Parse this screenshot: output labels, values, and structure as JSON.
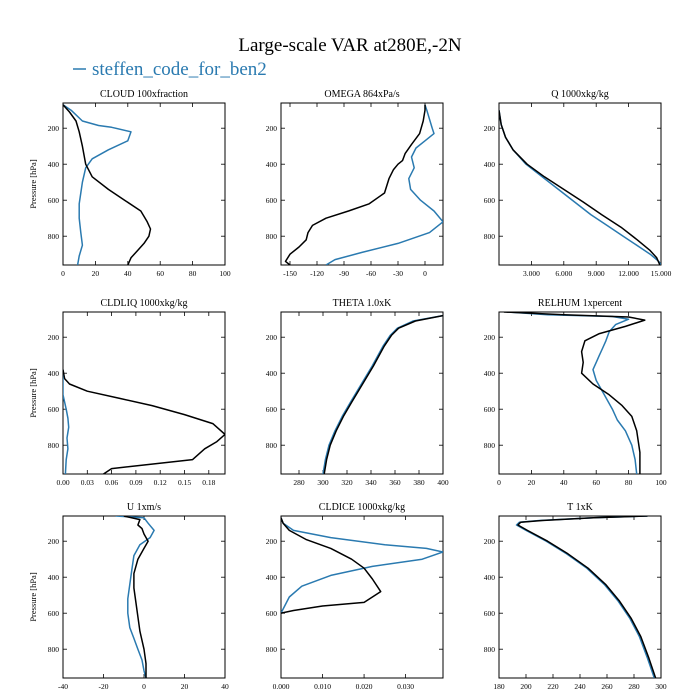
{
  "figure": {
    "title": "Large-scale VAR at280E,-2N",
    "legend_label": "steffen_code_for_ben2",
    "legend_color": "#2a7ab0",
    "reference_color": "#000000"
  },
  "chart_data": [
    {
      "type": "line",
      "title": "CLOUD  100xfraction",
      "ylabel": "Pressure [hPa]",
      "xlim": [
        0,
        100
      ],
      "ylim": [
        960,
        60
      ],
      "y_inverted": true,
      "xticks": [
        0,
        20,
        40,
        60,
        80,
        100
      ],
      "xtick_labels": [
        "0",
        "20",
        "40",
        "60",
        "80",
        "100"
      ],
      "yticks": [
        200,
        400,
        600,
        800
      ],
      "ytick_labels": [
        "200",
        "400",
        "600",
        "800"
      ],
      "series": [
        {
          "name": "steffen_code_for_ben2",
          "color": "#2a7ab0",
          "x": [
            0,
            5,
            12,
            22,
            30,
            42,
            40,
            28,
            18,
            14,
            12,
            11,
            10,
            10,
            11,
            12,
            10,
            9
          ],
          "y": [
            70,
            100,
            160,
            185,
            195,
            220,
            270,
            320,
            370,
            420,
            500,
            560,
            620,
            700,
            780,
            850,
            910,
            960
          ]
        },
        {
          "name": "black",
          "color": "#000000",
          "x": [
            0,
            4,
            8,
            10,
            12,
            14,
            18,
            28,
            38,
            48,
            52,
            54,
            53,
            50,
            46,
            42,
            40
          ],
          "y": [
            70,
            110,
            160,
            220,
            300,
            400,
            470,
            540,
            600,
            660,
            720,
            760,
            800,
            840,
            880,
            920,
            960
          ]
        }
      ]
    },
    {
      "type": "line",
      "title": "OMEGA  864xPa/s",
      "ylabel": "",
      "xlim": [
        -160,
        20
      ],
      "ylim": [
        960,
        60
      ],
      "y_inverted": true,
      "xticks": [
        -150,
        -120,
        -90,
        -60,
        -30,
        0
      ],
      "xtick_labels": [
        "-150",
        "-120",
        "-90",
        "-60",
        "-30",
        "0"
      ],
      "yticks": [
        200,
        400,
        600,
        800
      ],
      "ytick_labels": [
        "200",
        "400",
        "600",
        "800"
      ],
      "series": [
        {
          "name": "steffen_code_for_ben2",
          "color": "#2a7ab0",
          "x": [
            0,
            2,
            5,
            8,
            10,
            0,
            -10,
            -15,
            -12,
            -18,
            -16,
            -5,
            10,
            20,
            5,
            -30,
            -70,
            -100,
            -110
          ],
          "y": [
            70,
            100,
            150,
            200,
            230,
            270,
            310,
            360,
            420,
            480,
            540,
            600,
            660,
            720,
            780,
            840,
            890,
            930,
            960
          ]
        },
        {
          "name": "black",
          "color": "#000000",
          "x": [
            0,
            0,
            -2,
            -6,
            -15,
            -22,
            -25,
            -30,
            -35,
            -40,
            -45,
            -62,
            -85,
            -110,
            -125,
            -130,
            -132,
            -140,
            -150,
            -155,
            -150
          ],
          "y": [
            70,
            100,
            160,
            230,
            290,
            340,
            380,
            400,
            430,
            480,
            560,
            620,
            660,
            700,
            740,
            780,
            820,
            860,
            900,
            940,
            960
          ]
        }
      ]
    },
    {
      "type": "line",
      "title": "Q  1000xkg/kg",
      "ylabel": "",
      "xlim": [
        0,
        15
      ],
      "ylim": [
        960,
        60
      ],
      "y_inverted": true,
      "xticks": [
        3,
        6,
        9,
        12,
        15
      ],
      "xtick_labels": [
        "3.000",
        "6.000",
        "9.000",
        "12.000",
        "15.000"
      ],
      "yticks": [
        200,
        400,
        600,
        800
      ],
      "ytick_labels": [
        "200",
        "400",
        "600",
        "800"
      ],
      "series": [
        {
          "name": "steffen_code_for_ben2",
          "color": "#2a7ab0",
          "x": [
            0,
            0.2,
            0.6,
            1.3,
            2.5,
            4.0,
            5.5,
            7.0,
            8.5,
            10.0,
            11.5,
            13.0,
            14.0,
            14.8,
            15.0
          ],
          "y": [
            100,
            180,
            250,
            320,
            400,
            470,
            540,
            610,
            680,
            740,
            800,
            860,
            900,
            940,
            960
          ]
        },
        {
          "name": "black",
          "color": "#000000",
          "x": [
            0,
            0.2,
            0.6,
            1.3,
            2.6,
            4.2,
            6.0,
            7.8,
            9.5,
            11.3,
            12.8,
            14.0,
            14.6,
            14.9
          ],
          "y": [
            100,
            180,
            250,
            320,
            400,
            470,
            540,
            610,
            680,
            750,
            820,
            880,
            920,
            960
          ]
        }
      ]
    },
    {
      "type": "line",
      "title": "CLDLIQ  1000xkg/kg",
      "ylabel": "Pressure [hPa]",
      "xlim": [
        0,
        0.2
      ],
      "ylim": [
        960,
        60
      ],
      "y_inverted": true,
      "xticks": [
        0,
        0.03,
        0.06,
        0.09,
        0.12,
        0.15,
        0.18
      ],
      "xtick_labels": [
        "0.00",
        "0.03",
        "0.06",
        "0.09",
        "0.12",
        "0.15",
        "0.18"
      ],
      "yticks": [
        200,
        400,
        600,
        800
      ],
      "ytick_labels": [
        "200",
        "400",
        "600",
        "800"
      ],
      "series": [
        {
          "name": "steffen_code_for_ben2",
          "color": "#2a7ab0",
          "x": [
            0,
            0,
            0.002,
            0.004,
            0.006,
            0.007,
            0.005,
            0.006,
            0.004,
            0.003
          ],
          "y": [
            380,
            520,
            560,
            600,
            650,
            700,
            760,
            820,
            880,
            960
          ]
        },
        {
          "name": "black",
          "color": "#000000",
          "x": [
            0,
            0.002,
            0.008,
            0.03,
            0.07,
            0.11,
            0.15,
            0.185,
            0.2,
            0.19,
            0.175,
            0.16,
            0.1,
            0.06,
            0.05
          ],
          "y": [
            380,
            430,
            460,
            500,
            540,
            580,
            630,
            680,
            740,
            780,
            820,
            880,
            910,
            930,
            960
          ]
        }
      ]
    },
    {
      "type": "line",
      "title": "THETA  1.0xK",
      "ylabel": "",
      "xlim": [
        265,
        400
      ],
      "ylim": [
        960,
        60
      ],
      "y_inverted": true,
      "xticks": [
        280,
        300,
        320,
        340,
        360,
        380,
        400
      ],
      "xtick_labels": [
        "280",
        "300",
        "320",
        "340",
        "360",
        "380",
        "400"
      ],
      "yticks": [
        200,
        400,
        600,
        800
      ],
      "ytick_labels": [
        "200",
        "400",
        "600",
        "800"
      ],
      "series": [
        {
          "name": "steffen_code_for_ben2",
          "color": "#2a7ab0",
          "x": [
            300,
            302,
            305,
            310,
            316,
            323,
            332,
            341,
            350,
            356,
            362,
            375,
            400
          ],
          "y": [
            960,
            880,
            800,
            720,
            640,
            560,
            460,
            360,
            250,
            190,
            150,
            110,
            80
          ]
        },
        {
          "name": "black",
          "color": "#000000",
          "x": [
            301,
            303,
            306,
            311,
            317,
            324,
            333,
            342,
            351,
            357,
            363,
            377,
            400
          ],
          "y": [
            960,
            880,
            800,
            720,
            640,
            560,
            460,
            360,
            250,
            190,
            150,
            110,
            80
          ]
        }
      ]
    },
    {
      "type": "line",
      "title": "RELHUM  1xpercent",
      "ylabel": "",
      "xlim": [
        0,
        100
      ],
      "ylim": [
        960,
        60
      ],
      "y_inverted": true,
      "xticks": [
        0,
        20,
        40,
        60,
        80,
        100
      ],
      "xtick_labels": [
        "0",
        "20",
        "40",
        "60",
        "80",
        "100"
      ],
      "yticks": [
        200,
        400,
        600,
        800
      ],
      "ytick_labels": [
        "200",
        "400",
        "600",
        "800"
      ],
      "series": [
        {
          "name": "steffen_code_for_ben2",
          "color": "#2a7ab0",
          "x": [
            5,
            30,
            70,
            80,
            72,
            68,
            66,
            64,
            62,
            60,
            58,
            60,
            65,
            70,
            73,
            78,
            82,
            84,
            85
          ],
          "y": [
            60,
            75,
            85,
            100,
            130,
            170,
            220,
            260,
            300,
            340,
            380,
            440,
            520,
            600,
            660,
            720,
            800,
            880,
            960
          ]
        },
        {
          "name": "black",
          "color": "#000000",
          "x": [
            3,
            40,
            80,
            90,
            78,
            62,
            53,
            51,
            52,
            51,
            58,
            68,
            76,
            82,
            85,
            87,
            87
          ],
          "y": [
            60,
            75,
            88,
            105,
            140,
            180,
            220,
            280,
            340,
            400,
            460,
            520,
            580,
            640,
            720,
            840,
            960
          ]
        }
      ]
    },
    {
      "type": "line",
      "title": "U  1xm/s",
      "ylabel": "Pressure [hPa]",
      "xlim": [
        -40,
        40
      ],
      "ylim": [
        960,
        60
      ],
      "y_inverted": true,
      "xticks": [
        -40,
        -20,
        0,
        20,
        40
      ],
      "xtick_labels": [
        "-40",
        "-20",
        "0",
        "20",
        "40"
      ],
      "yticks": [
        200,
        400,
        600,
        800
      ],
      "ytick_labels": [
        "200",
        "400",
        "600",
        "800"
      ],
      "series": [
        {
          "name": "steffen_code_for_ben2",
          "color": "#2a7ab0",
          "x": [
            -14,
            0,
            2,
            5,
            3,
            -2,
            -5,
            -6,
            -7,
            -8,
            -8,
            -7,
            -5,
            -3,
            -1,
            0,
            1
          ],
          "y": [
            60,
            70,
            100,
            140,
            180,
            220,
            280,
            360,
            440,
            520,
            600,
            680,
            740,
            800,
            860,
            920,
            960
          ]
        },
        {
          "name": "black",
          "color": "#000000",
          "x": [
            -10,
            -2,
            -3,
            -1,
            0,
            2,
            0,
            -3,
            -5,
            -5,
            -4,
            -3,
            -2,
            0,
            1,
            1
          ],
          "y": [
            60,
            80,
            110,
            130,
            160,
            200,
            240,
            300,
            380,
            460,
            540,
            620,
            700,
            800,
            880,
            960
          ]
        }
      ]
    },
    {
      "type": "line",
      "title": "CLDICE  1000xkg/kg",
      "ylabel": "",
      "xlim": [
        0,
        0.039
      ],
      "ylim": [
        960,
        60
      ],
      "y_inverted": true,
      "xticks": [
        0,
        0.01,
        0.02,
        0.03
      ],
      "xtick_labels": [
        "0.000",
        "0.010",
        "0.020",
        "0.030"
      ],
      "yticks": [
        200,
        400,
        600,
        800
      ],
      "ytick_labels": [
        "200",
        "400",
        "600",
        "800"
      ],
      "series": [
        {
          "name": "steffen_code_for_ben2",
          "color": "#2a7ab0",
          "x": [
            0,
            0.0005,
            0.003,
            0.012,
            0.025,
            0.035,
            0.039,
            0.034,
            0.022,
            0.012,
            0.005,
            0.002,
            0
          ],
          "y": [
            70,
            100,
            140,
            180,
            220,
            240,
            260,
            300,
            340,
            390,
            450,
            510,
            600
          ]
        },
        {
          "name": "black",
          "color": "#000000",
          "x": [
            0,
            0.0005,
            0.002,
            0.006,
            0.012,
            0.017,
            0.02,
            0.022,
            0.024,
            0.02,
            0.01,
            0.003,
            0
          ],
          "y": [
            70,
            100,
            140,
            190,
            240,
            300,
            350,
            410,
            480,
            540,
            560,
            585,
            600
          ]
        }
      ]
    },
    {
      "type": "line",
      "title": "T  1xK",
      "ylabel": "",
      "xlim": [
        180,
        300
      ],
      "ylim": [
        960,
        60
      ],
      "y_inverted": true,
      "xticks": [
        180,
        200,
        220,
        240,
        260,
        280,
        300
      ],
      "xtick_labels": [
        "180",
        "200",
        "220",
        "240",
        "260",
        "280",
        "300"
      ],
      "yticks": [
        200,
        400,
        600,
        800
      ],
      "ytick_labels": [
        "200",
        "400",
        "600",
        "800"
      ],
      "series": [
        {
          "name": "steffen_code_for_ben2",
          "color": "#2a7ab0",
          "x": [
            290,
            250,
            210,
            195,
            193,
            200,
            215,
            230,
            245,
            258,
            268,
            277,
            284,
            290,
            295
          ],
          "y": [
            60,
            70,
            85,
            95,
            110,
            140,
            200,
            270,
            350,
            440,
            530,
            630,
            730,
            850,
            960
          ]
        },
        {
          "name": "black",
          "color": "#000000",
          "x": [
            290,
            250,
            212,
            196,
            194,
            201,
            216,
            231,
            246,
            259,
            269,
            278,
            285,
            291,
            296
          ],
          "y": [
            60,
            70,
            85,
            95,
            110,
            140,
            200,
            270,
            350,
            440,
            530,
            630,
            730,
            850,
            960
          ]
        }
      ]
    }
  ]
}
